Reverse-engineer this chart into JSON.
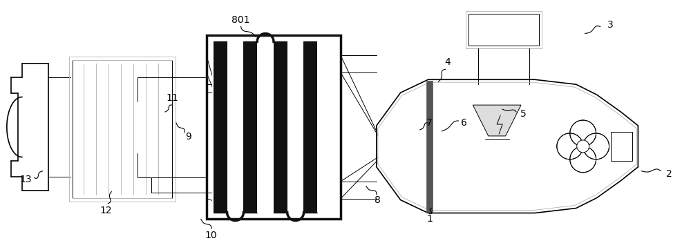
{
  "bg_color": "#ffffff",
  "lc": "#000000",
  "gc": "#bbbbbb",
  "dc": "#111111",
  "mc": "#555555",
  "figsize": [
    10.0,
    3.65
  ],
  "dpi": 100
}
